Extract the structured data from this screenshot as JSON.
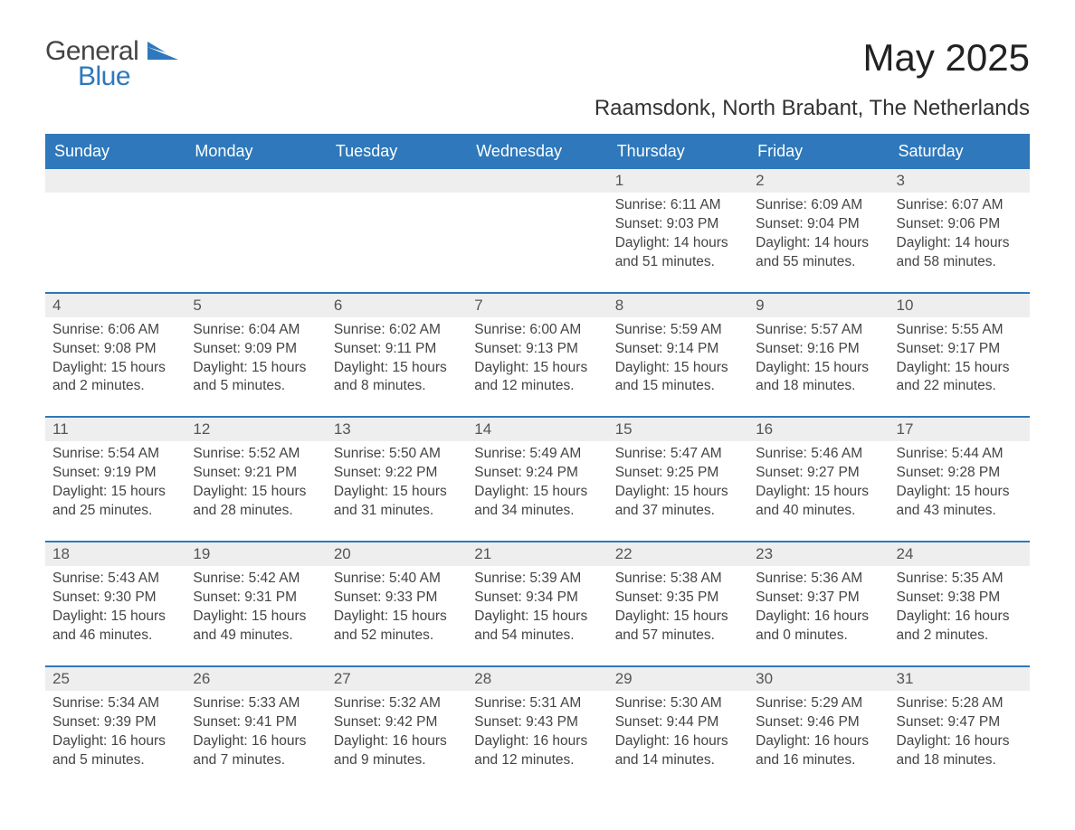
{
  "logo": {
    "text1": "General",
    "text2": "Blue",
    "accent_color": "#2e78bb"
  },
  "title": "May 2025",
  "location": "Raamsdonk, North Brabant, The Netherlands",
  "colors": {
    "header_bg": "#2e78bb",
    "header_text": "#ffffff",
    "daynum_bg": "#eeeeee",
    "row_divider": "#2e78bb",
    "body_text": "#444444",
    "background": "#ffffff"
  },
  "day_headers": [
    "Sunday",
    "Monday",
    "Tuesday",
    "Wednesday",
    "Thursday",
    "Friday",
    "Saturday"
  ],
  "weeks": [
    [
      {
        "empty": true
      },
      {
        "empty": true
      },
      {
        "empty": true
      },
      {
        "empty": true
      },
      {
        "num": "1",
        "sunrise": "Sunrise: 6:11 AM",
        "sunset": "Sunset: 9:03 PM",
        "day1": "Daylight: 14 hours",
        "day2": "and 51 minutes."
      },
      {
        "num": "2",
        "sunrise": "Sunrise: 6:09 AM",
        "sunset": "Sunset: 9:04 PM",
        "day1": "Daylight: 14 hours",
        "day2": "and 55 minutes."
      },
      {
        "num": "3",
        "sunrise": "Sunrise: 6:07 AM",
        "sunset": "Sunset: 9:06 PM",
        "day1": "Daylight: 14 hours",
        "day2": "and 58 minutes."
      }
    ],
    [
      {
        "num": "4",
        "sunrise": "Sunrise: 6:06 AM",
        "sunset": "Sunset: 9:08 PM",
        "day1": "Daylight: 15 hours",
        "day2": "and 2 minutes."
      },
      {
        "num": "5",
        "sunrise": "Sunrise: 6:04 AM",
        "sunset": "Sunset: 9:09 PM",
        "day1": "Daylight: 15 hours",
        "day2": "and 5 minutes."
      },
      {
        "num": "6",
        "sunrise": "Sunrise: 6:02 AM",
        "sunset": "Sunset: 9:11 PM",
        "day1": "Daylight: 15 hours",
        "day2": "and 8 minutes."
      },
      {
        "num": "7",
        "sunrise": "Sunrise: 6:00 AM",
        "sunset": "Sunset: 9:13 PM",
        "day1": "Daylight: 15 hours",
        "day2": "and 12 minutes."
      },
      {
        "num": "8",
        "sunrise": "Sunrise: 5:59 AM",
        "sunset": "Sunset: 9:14 PM",
        "day1": "Daylight: 15 hours",
        "day2": "and 15 minutes."
      },
      {
        "num": "9",
        "sunrise": "Sunrise: 5:57 AM",
        "sunset": "Sunset: 9:16 PM",
        "day1": "Daylight: 15 hours",
        "day2": "and 18 minutes."
      },
      {
        "num": "10",
        "sunrise": "Sunrise: 5:55 AM",
        "sunset": "Sunset: 9:17 PM",
        "day1": "Daylight: 15 hours",
        "day2": "and 22 minutes."
      }
    ],
    [
      {
        "num": "11",
        "sunrise": "Sunrise: 5:54 AM",
        "sunset": "Sunset: 9:19 PM",
        "day1": "Daylight: 15 hours",
        "day2": "and 25 minutes."
      },
      {
        "num": "12",
        "sunrise": "Sunrise: 5:52 AM",
        "sunset": "Sunset: 9:21 PM",
        "day1": "Daylight: 15 hours",
        "day2": "and 28 minutes."
      },
      {
        "num": "13",
        "sunrise": "Sunrise: 5:50 AM",
        "sunset": "Sunset: 9:22 PM",
        "day1": "Daylight: 15 hours",
        "day2": "and 31 minutes."
      },
      {
        "num": "14",
        "sunrise": "Sunrise: 5:49 AM",
        "sunset": "Sunset: 9:24 PM",
        "day1": "Daylight: 15 hours",
        "day2": "and 34 minutes."
      },
      {
        "num": "15",
        "sunrise": "Sunrise: 5:47 AM",
        "sunset": "Sunset: 9:25 PM",
        "day1": "Daylight: 15 hours",
        "day2": "and 37 minutes."
      },
      {
        "num": "16",
        "sunrise": "Sunrise: 5:46 AM",
        "sunset": "Sunset: 9:27 PM",
        "day1": "Daylight: 15 hours",
        "day2": "and 40 minutes."
      },
      {
        "num": "17",
        "sunrise": "Sunrise: 5:44 AM",
        "sunset": "Sunset: 9:28 PM",
        "day1": "Daylight: 15 hours",
        "day2": "and 43 minutes."
      }
    ],
    [
      {
        "num": "18",
        "sunrise": "Sunrise: 5:43 AM",
        "sunset": "Sunset: 9:30 PM",
        "day1": "Daylight: 15 hours",
        "day2": "and 46 minutes."
      },
      {
        "num": "19",
        "sunrise": "Sunrise: 5:42 AM",
        "sunset": "Sunset: 9:31 PM",
        "day1": "Daylight: 15 hours",
        "day2": "and 49 minutes."
      },
      {
        "num": "20",
        "sunrise": "Sunrise: 5:40 AM",
        "sunset": "Sunset: 9:33 PM",
        "day1": "Daylight: 15 hours",
        "day2": "and 52 minutes."
      },
      {
        "num": "21",
        "sunrise": "Sunrise: 5:39 AM",
        "sunset": "Sunset: 9:34 PM",
        "day1": "Daylight: 15 hours",
        "day2": "and 54 minutes."
      },
      {
        "num": "22",
        "sunrise": "Sunrise: 5:38 AM",
        "sunset": "Sunset: 9:35 PM",
        "day1": "Daylight: 15 hours",
        "day2": "and 57 minutes."
      },
      {
        "num": "23",
        "sunrise": "Sunrise: 5:36 AM",
        "sunset": "Sunset: 9:37 PM",
        "day1": "Daylight: 16 hours",
        "day2": "and 0 minutes."
      },
      {
        "num": "24",
        "sunrise": "Sunrise: 5:35 AM",
        "sunset": "Sunset: 9:38 PM",
        "day1": "Daylight: 16 hours",
        "day2": "and 2 minutes."
      }
    ],
    [
      {
        "num": "25",
        "sunrise": "Sunrise: 5:34 AM",
        "sunset": "Sunset: 9:39 PM",
        "day1": "Daylight: 16 hours",
        "day2": "and 5 minutes."
      },
      {
        "num": "26",
        "sunrise": "Sunrise: 5:33 AM",
        "sunset": "Sunset: 9:41 PM",
        "day1": "Daylight: 16 hours",
        "day2": "and 7 minutes."
      },
      {
        "num": "27",
        "sunrise": "Sunrise: 5:32 AM",
        "sunset": "Sunset: 9:42 PM",
        "day1": "Daylight: 16 hours",
        "day2": "and 9 minutes."
      },
      {
        "num": "28",
        "sunrise": "Sunrise: 5:31 AM",
        "sunset": "Sunset: 9:43 PM",
        "day1": "Daylight: 16 hours",
        "day2": "and 12 minutes."
      },
      {
        "num": "29",
        "sunrise": "Sunrise: 5:30 AM",
        "sunset": "Sunset: 9:44 PM",
        "day1": "Daylight: 16 hours",
        "day2": "and 14 minutes."
      },
      {
        "num": "30",
        "sunrise": "Sunrise: 5:29 AM",
        "sunset": "Sunset: 9:46 PM",
        "day1": "Daylight: 16 hours",
        "day2": "and 16 minutes."
      },
      {
        "num": "31",
        "sunrise": "Sunrise: 5:28 AM",
        "sunset": "Sunset: 9:47 PM",
        "day1": "Daylight: 16 hours",
        "day2": "and 18 minutes."
      }
    ]
  ]
}
